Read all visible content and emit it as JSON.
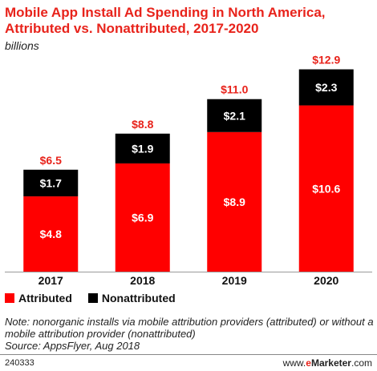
{
  "header": {
    "title": "Mobile App Install Ad Spending in North America, Attributed vs. Nonattributed, 2017-2020",
    "subtitle": "billions"
  },
  "colors": {
    "attributed": "#ff0000",
    "nonattributed": "#000000",
    "total_label": "#e8231b"
  },
  "chart_data": {
    "type": "bar",
    "stacked": true,
    "categories": [
      "2017",
      "2018",
      "2019",
      "2020"
    ],
    "series": [
      {
        "name": "Attributed",
        "values": [
          4.8,
          6.9,
          8.9,
          10.6
        ],
        "labels": [
          "$4.8",
          "$6.9",
          "$8.9",
          "$10.6"
        ]
      },
      {
        "name": "Nonattributed",
        "values": [
          1.7,
          1.9,
          2.1,
          2.3
        ],
        "labels": [
          "$1.7",
          "$1.9",
          "$2.1",
          "$2.3"
        ]
      }
    ],
    "totals": [
      6.5,
      8.8,
      11.0,
      12.9
    ],
    "total_labels": [
      "$6.5",
      "$8.8",
      "$11.0",
      "$12.9"
    ],
    "ylim": [
      0,
      14
    ],
    "grid": false,
    "legend": "bottom-left"
  },
  "legend": {
    "attributed": "Attributed",
    "nonattributed": "Nonattributed"
  },
  "note": "Note: nonorganic installs via mobile attribution providers (attributed) or without a mobile attribution provider (nonattributed)",
  "source": "Source: AppsFlyer, Aug 2018",
  "footer": {
    "chart_id": "240333",
    "brand_www": "www.",
    "brand_e": "e",
    "brand_name": "Marketer",
    "brand_domain": ".com"
  }
}
